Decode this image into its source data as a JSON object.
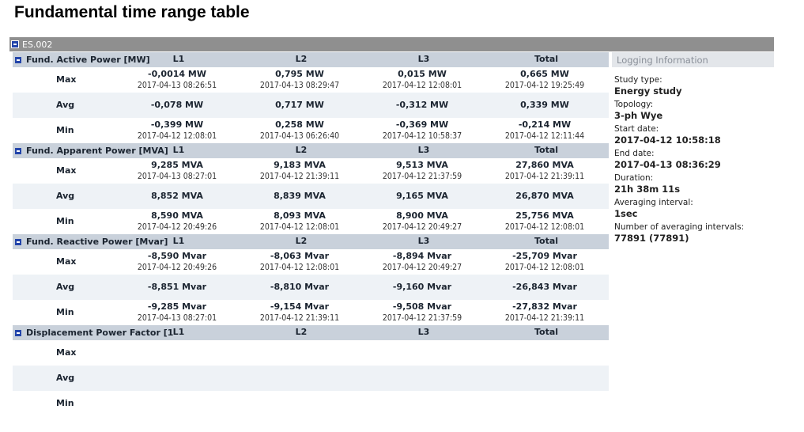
{
  "page_title": "Fundamental time range table",
  "study_node": "ES.002",
  "columns": [
    "L1",
    "L2",
    "L3",
    "Total"
  ],
  "sections": [
    {
      "title": "Fund. Active Power [MW]",
      "rows": [
        {
          "label": "Max",
          "cells": [
            {
              "value": "-0,0014 MW",
              "time": "2017-04-13 08:26:51"
            },
            {
              "value": "0,795 MW",
              "time": "2017-04-13 08:29:47"
            },
            {
              "value": "0,015 MW",
              "time": "2017-04-12 12:08:01"
            },
            {
              "value": "0,665 MW",
              "time": "2017-04-12 19:25:49"
            }
          ]
        },
        {
          "label": "Avg",
          "cells": [
            {
              "value": "-0,078 MW",
              "time": ""
            },
            {
              "value": "0,717 MW",
              "time": ""
            },
            {
              "value": "-0,312 MW",
              "time": ""
            },
            {
              "value": "0,339 MW",
              "time": ""
            }
          ]
        },
        {
          "label": "Min",
          "cells": [
            {
              "value": "-0,399 MW",
              "time": "2017-04-12 12:08:01"
            },
            {
              "value": "0,258 MW",
              "time": "2017-04-13 06:26:40"
            },
            {
              "value": "-0,369 MW",
              "time": "2017-04-12 10:58:37"
            },
            {
              "value": "-0,214 MW",
              "time": "2017-04-12 12:11:44"
            }
          ]
        }
      ]
    },
    {
      "title": "Fund. Apparent Power [MVA]",
      "rows": [
        {
          "label": "Max",
          "cells": [
            {
              "value": "9,285 MVA",
              "time": "2017-04-13 08:27:01"
            },
            {
              "value": "9,183 MVA",
              "time": "2017-04-12 21:39:11"
            },
            {
              "value": "9,513 MVA",
              "time": "2017-04-12 21:37:59"
            },
            {
              "value": "27,860 MVA",
              "time": "2017-04-12 21:39:11"
            }
          ]
        },
        {
          "label": "Avg",
          "cells": [
            {
              "value": "8,852 MVA",
              "time": ""
            },
            {
              "value": "8,839 MVA",
              "time": ""
            },
            {
              "value": "9,165 MVA",
              "time": ""
            },
            {
              "value": "26,870 MVA",
              "time": ""
            }
          ]
        },
        {
          "label": "Min",
          "cells": [
            {
              "value": "8,590 MVA",
              "time": "2017-04-12 20:49:26"
            },
            {
              "value": "8,093 MVA",
              "time": "2017-04-12 12:08:01"
            },
            {
              "value": "8,900 MVA",
              "time": "2017-04-12 20:49:27"
            },
            {
              "value": "25,756 MVA",
              "time": "2017-04-12 12:08:01"
            }
          ]
        }
      ]
    },
    {
      "title": "Fund. Reactive Power [Mvar]",
      "rows": [
        {
          "label": "Max",
          "cells": [
            {
              "value": "-8,590 Mvar",
              "time": "2017-04-12 20:49:26"
            },
            {
              "value": "-8,063 Mvar",
              "time": "2017-04-12 12:08:01"
            },
            {
              "value": "-8,894 Mvar",
              "time": "2017-04-12 20:49:27"
            },
            {
              "value": "-25,709 Mvar",
              "time": "2017-04-12 12:08:01"
            }
          ]
        },
        {
          "label": "Avg",
          "cells": [
            {
              "value": "-8,851 Mvar",
              "time": ""
            },
            {
              "value": "-8,810 Mvar",
              "time": ""
            },
            {
              "value": "-9,160 Mvar",
              "time": ""
            },
            {
              "value": "-26,843 Mvar",
              "time": ""
            }
          ]
        },
        {
          "label": "Min",
          "cells": [
            {
              "value": "-9,285 Mvar",
              "time": "2017-04-13 08:27:01"
            },
            {
              "value": "-9,154 Mvar",
              "time": "2017-04-12 21:39:11"
            },
            {
              "value": "-9,508 Mvar",
              "time": "2017-04-12 21:37:59"
            },
            {
              "value": "-27,832 Mvar",
              "time": "2017-04-12 21:39:11"
            }
          ]
        }
      ]
    },
    {
      "title": "Displacement Power Factor [1",
      "rows": [
        {
          "label": "Max",
          "cells": [
            {
              "value": "",
              "time": ""
            },
            {
              "value": "",
              "time": ""
            },
            {
              "value": "",
              "time": ""
            },
            {
              "value": "",
              "time": ""
            }
          ]
        },
        {
          "label": "Avg",
          "cells": [
            {
              "value": "",
              "time": ""
            },
            {
              "value": "",
              "time": ""
            },
            {
              "value": "",
              "time": ""
            },
            {
              "value": "",
              "time": ""
            }
          ]
        },
        {
          "label": "Min",
          "cells": [
            {
              "value": "",
              "time": ""
            },
            {
              "value": "",
              "time": ""
            },
            {
              "value": "",
              "time": ""
            },
            {
              "value": "",
              "time": ""
            }
          ]
        }
      ]
    }
  ],
  "logging_info": {
    "header": "Logging Information",
    "items": [
      {
        "label": "Study type:",
        "value": "Energy study"
      },
      {
        "label": "Topology:",
        "value": "3-ph Wye"
      },
      {
        "label": "Start date:",
        "value": "2017-04-12 10:58:18"
      },
      {
        "label": "End date:",
        "value": "2017-04-13 08:36:29"
      },
      {
        "label": "Duration:",
        "value": "21h 38m 11s"
      },
      {
        "label": "Averaging interval:",
        "value": "1sec"
      },
      {
        "label": "Number of averaging intervals:",
        "value": "77891 (77891)"
      }
    ]
  }
}
